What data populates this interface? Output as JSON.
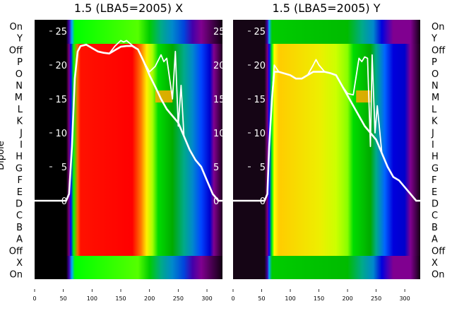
{
  "chart_data": [
    {
      "type": "heatmap",
      "title": "1.5 (LBA5=2005) X",
      "ylabel": "Dipole",
      "xlim": [
        0,
        327
      ],
      "x_ticks": [
        "0",
        "50",
        "100",
        "150",
        "200",
        "250",
        "300"
      ],
      "x_tick_values": [
        0,
        50,
        100,
        150,
        200,
        250,
        300
      ],
      "row_labels": [
        "On",
        "Y",
        "Off",
        "P",
        "O",
        "N",
        "M",
        "L",
        "K",
        "J",
        "I",
        "H",
        "G",
        "F",
        "E",
        "D",
        "C",
        "B",
        "A",
        "Off",
        "X",
        "On"
      ],
      "overlay_ylim": [
        0,
        27
      ],
      "overlay_ticks": [
        "0",
        "5",
        "10",
        "15",
        "20",
        "25"
      ],
      "overlay_tick_values": [
        0,
        5,
        10,
        15,
        20,
        25
      ],
      "band_colors": {
        "main": [
          [
            0,
            "#000000"
          ],
          [
            55,
            "#000000"
          ],
          [
            60,
            "#800080"
          ],
          [
            63,
            "#0000ff"
          ],
          [
            68,
            "#00ff00"
          ],
          [
            75,
            "#ff6600"
          ],
          [
            80,
            "#ff1100"
          ],
          [
            170,
            "#ff0000"
          ],
          [
            185,
            "#ff7700"
          ],
          [
            195,
            "#ffee00"
          ],
          [
            205,
            "#aaff00"
          ],
          [
            215,
            "#00dd00"
          ],
          [
            240,
            "#00aa00"
          ],
          [
            260,
            "#00aa88"
          ],
          [
            275,
            "#0088cc"
          ],
          [
            290,
            "#0044ff"
          ],
          [
            305,
            "#0000cc"
          ],
          [
            312,
            "#800090"
          ],
          [
            327,
            "#200020"
          ]
        ],
        "edge": [
          [
            0,
            "#000000"
          ],
          [
            55,
            "#000000"
          ],
          [
            60,
            "#4400aa"
          ],
          [
            65,
            "#00aaff"
          ],
          [
            70,
            "#00ff00"
          ],
          [
            180,
            "#55ff00"
          ],
          [
            200,
            "#00cc00"
          ],
          [
            220,
            "#00aa88"
          ],
          [
            240,
            "#0088cc"
          ],
          [
            260,
            "#0044dd"
          ],
          [
            275,
            "#4400aa"
          ],
          [
            290,
            "#800090"
          ],
          [
            327,
            "#100010"
          ]
        ],
        "patch": "#ffaa00"
      },
      "series": [
        {
          "name": "line1",
          "x": [
            0,
            55,
            60,
            65,
            70,
            75,
            80,
            90,
            100,
            110,
            120,
            130,
            140,
            150,
            160,
            170,
            180,
            190,
            200,
            210,
            220,
            230,
            240,
            250,
            260,
            270,
            280,
            290,
            300,
            310,
            320,
            327
          ],
          "y": [
            0,
            0,
            1,
            8,
            18,
            22,
            22.8,
            23,
            22.5,
            22,
            21.8,
            21.7,
            22.2,
            22.7,
            22.8,
            22.8,
            22.3,
            20.5,
            18.5,
            16.8,
            15,
            13.5,
            12.5,
            11.5,
            9.5,
            7.5,
            6,
            5,
            3,
            1,
            0,
            0
          ]
        },
        {
          "name": "line2",
          "x": [
            0,
            55,
            60,
            65,
            70,
            75,
            80,
            90,
            100,
            110,
            120,
            130,
            140,
            150,
            155,
            160,
            170,
            180,
            190,
            200,
            210,
            220,
            225,
            230,
            235,
            240,
            245,
            250,
            255,
            260,
            270,
            280,
            290,
            300,
            310,
            320,
            327
          ],
          "y": [
            0,
            0,
            1,
            8,
            18,
            22,
            22.8,
            23,
            22.5,
            22,
            21.8,
            21.7,
            22.8,
            23.6,
            23.4,
            23.6,
            22.9,
            22.3,
            20.5,
            19,
            19.8,
            21.5,
            20.5,
            21,
            18,
            15,
            22,
            11,
            17,
            9.5,
            7.5,
            6,
            5,
            3,
            1,
            0,
            0
          ]
        }
      ]
    },
    {
      "type": "heatmap",
      "title": "1.5 (LBA5=2005) Y",
      "xlim": [
        0,
        327
      ],
      "x_ticks": [
        "0",
        "50",
        "100",
        "150",
        "200",
        "250",
        "300"
      ],
      "x_tick_values": [
        0,
        50,
        100,
        150,
        200,
        250,
        300
      ],
      "row_labels": [
        "On",
        "Y",
        "Off",
        "P",
        "O",
        "N",
        "M",
        "L",
        "K",
        "J",
        "I",
        "H",
        "G",
        "F",
        "E",
        "D",
        "C",
        "B",
        "A",
        "Off",
        "X",
        "On"
      ],
      "overlay_ylim": [
        0,
        27
      ],
      "overlay_ticks": [
        "0",
        "5",
        "10",
        "15",
        "20",
        "25"
      ],
      "overlay_tick_values": [
        0,
        5,
        10,
        15,
        20,
        25
      ],
      "band_colors": {
        "main": [
          [
            0,
            "#150515"
          ],
          [
            55,
            "#150515"
          ],
          [
            60,
            "#800080"
          ],
          [
            63,
            "#0000ff"
          ],
          [
            68,
            "#00ff00"
          ],
          [
            72,
            "#ffff00"
          ],
          [
            80,
            "#ffcc00"
          ],
          [
            150,
            "#eeee00"
          ],
          [
            180,
            "#ccff00"
          ],
          [
            200,
            "#88ff00"
          ],
          [
            210,
            "#00dd00"
          ],
          [
            240,
            "#00aa00"
          ],
          [
            250,
            "#00aa88"
          ],
          [
            265,
            "#0066ff"
          ],
          [
            280,
            "#0000dd"
          ],
          [
            300,
            "#0000cc"
          ],
          [
            310,
            "#800090"
          ],
          [
            327,
            "#150015"
          ]
        ],
        "edge": [
          [
            0,
            "#150515"
          ],
          [
            55,
            "#150515"
          ],
          [
            60,
            "#4400aa"
          ],
          [
            63,
            "#00aaff"
          ],
          [
            68,
            "#00cc00"
          ],
          [
            200,
            "#00bb00"
          ],
          [
            225,
            "#00aa88"
          ],
          [
            245,
            "#0088cc"
          ],
          [
            260,
            "#0000dd"
          ],
          [
            270,
            "#4400bb"
          ],
          [
            280,
            "#800090"
          ],
          [
            310,
            "#800090"
          ],
          [
            327,
            "#100010"
          ]
        ],
        "patch": "#ffaa00"
      },
      "series": [
        {
          "name": "line1",
          "x": [
            0,
            55,
            60,
            63,
            68,
            72,
            80,
            100,
            110,
            120,
            130,
            140,
            150,
            160,
            170,
            180,
            190,
            200,
            210,
            220,
            230,
            240,
            250,
            260,
            270,
            280,
            290,
            300,
            310,
            320,
            327
          ],
          "y": [
            0,
            0,
            1,
            8,
            15,
            19,
            19,
            18.5,
            18,
            18,
            18.5,
            19,
            19,
            19,
            18.8,
            18.5,
            17,
            15.5,
            14,
            12.5,
            11,
            10,
            9,
            7,
            5,
            3.5,
            3,
            2,
            1,
            0,
            0
          ]
        },
        {
          "name": "line2",
          "x": [
            0,
            55,
            60,
            63,
            68,
            72,
            80,
            100,
            110,
            120,
            130,
            140,
            145,
            150,
            160,
            170,
            180,
            190,
            200,
            210,
            220,
            225,
            230,
            235,
            240,
            243,
            248,
            252,
            260,
            270,
            280,
            290,
            300,
            310,
            320,
            327
          ],
          "y": [
            0,
            0,
            1,
            8,
            15,
            20,
            19,
            18.5,
            18,
            18,
            18.5,
            20,
            20.8,
            20,
            19,
            18.8,
            18.5,
            17,
            15.8,
            15.6,
            21,
            20.5,
            21.2,
            21,
            8,
            21.5,
            10,
            14,
            7,
            5,
            3.5,
            3,
            2,
            1,
            0,
            0
          ]
        }
      ]
    }
  ]
}
